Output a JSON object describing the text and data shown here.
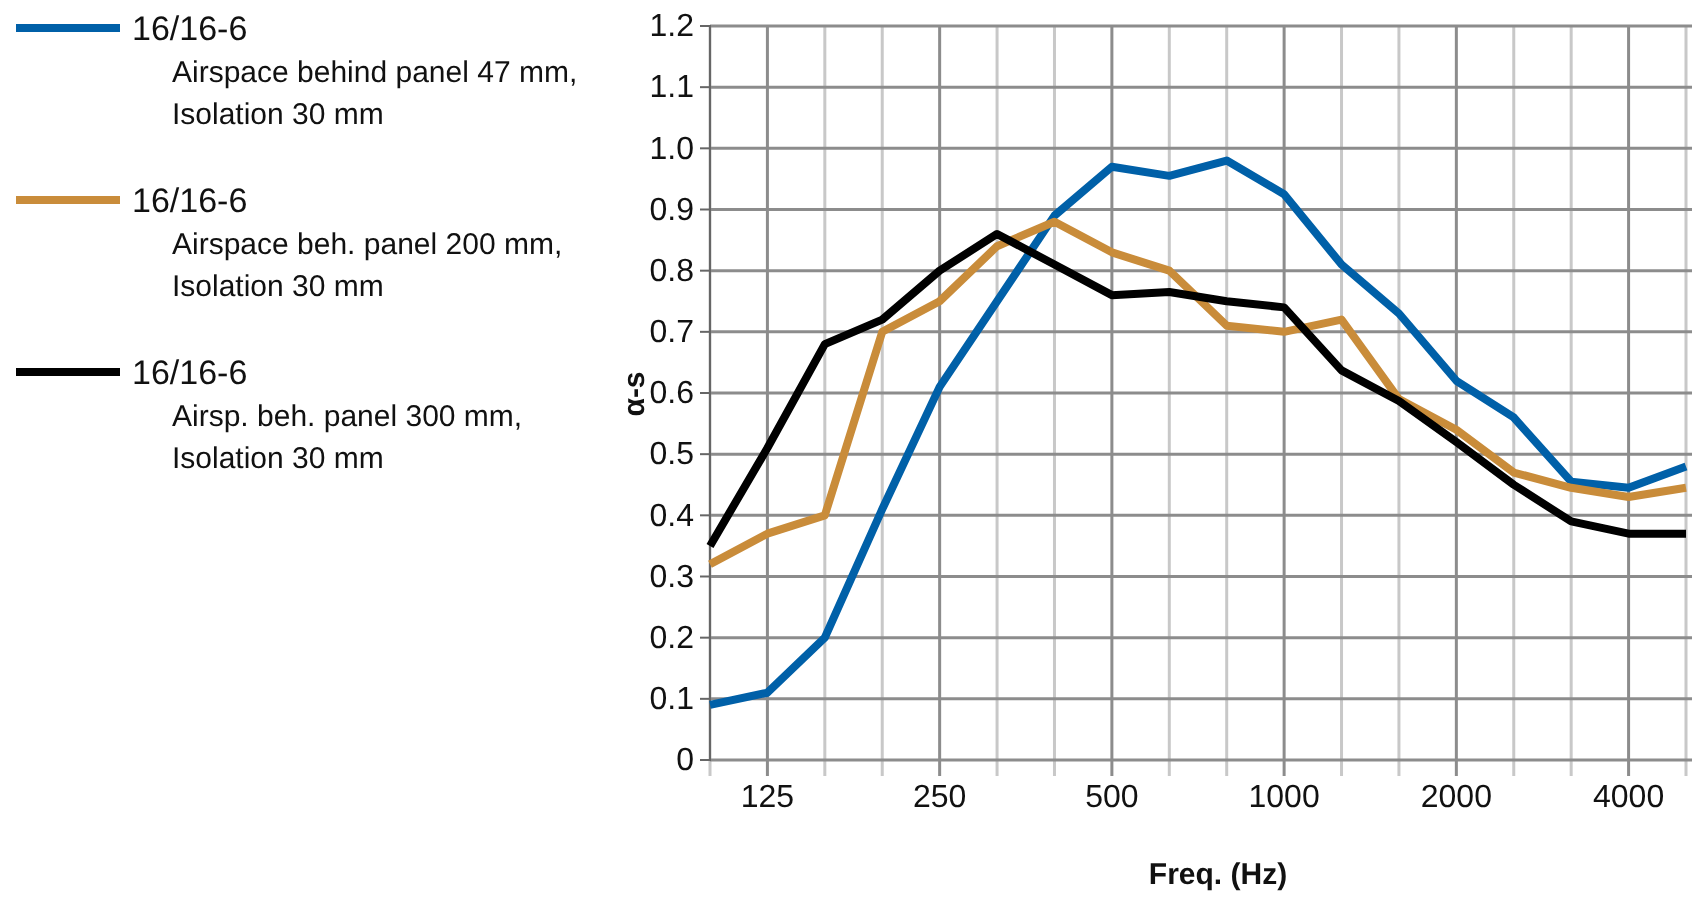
{
  "chart_data": {
    "type": "line",
    "xlabel": "Freq. (Hz)",
    "ylabel": "α-s",
    "categories": [
      null,
      "125",
      null,
      null,
      "250",
      null,
      null,
      "500",
      null,
      null,
      "1000",
      null,
      null,
      "2000",
      null,
      null,
      "4000",
      null
    ],
    "series": [
      {
        "name": "16/16-6\nAirspace behind panel 47 mm,\nIsolation 30 mm",
        "color": "#0060a8",
        "values": [
          0.09,
          0.11,
          0.2,
          0.41,
          0.61,
          0.75,
          0.89,
          0.97,
          0.955,
          0.98,
          0.925,
          0.81,
          0.73,
          0.62,
          0.56,
          0.455,
          0.445,
          0.48
        ]
      },
      {
        "name": "16/16-6\nAirspace beh. panel 200 mm,\nIsolation 30 mm",
        "color": "#c98c3a",
        "values": [
          0.32,
          0.37,
          0.4,
          0.7,
          0.75,
          0.84,
          0.88,
          0.83,
          0.8,
          0.71,
          0.7,
          0.72,
          0.59,
          0.54,
          0.47,
          0.445,
          0.43,
          0.445
        ]
      },
      {
        "name": "16/16-6\nAirsp. beh. panel 300 mm,\nIsolation 30 mm",
        "color": "#000000",
        "values": [
          0.35,
          0.51,
          0.68,
          0.72,
          0.8,
          0.86,
          0.81,
          0.76,
          0.765,
          0.75,
          0.74,
          0.637,
          0.587,
          0.52,
          0.45,
          0.39,
          0.37,
          0.37
        ]
      }
    ],
    "ylim": [
      0,
      1.2
    ],
    "yticks": [
      0,
      0.1,
      0.2,
      0.3,
      0.4,
      0.5,
      0.6,
      0.7,
      0.8,
      0.9,
      {
        "value": 1,
        "label": "1.0"
      },
      1.1,
      1.2
    ],
    "grid": true,
    "legend": "left",
    "marker": "none",
    "line_style": "solid"
  }
}
